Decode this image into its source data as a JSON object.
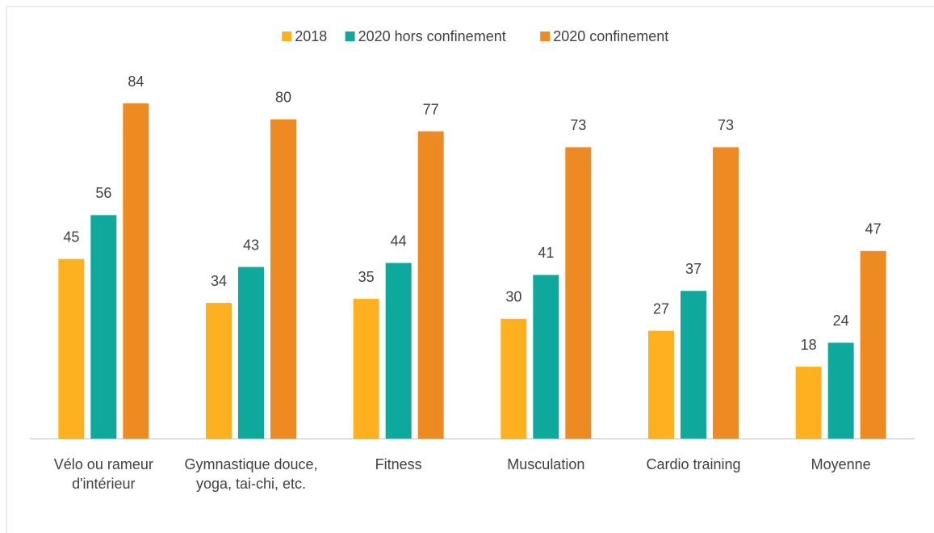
{
  "chart_data": {
    "type": "bar",
    "categories": [
      "Vélo ou rameur d'intérieur",
      "Gymnastique douce, yoga, tai-chi, etc.",
      "Fitness",
      "Musculation",
      "Cardio training",
      "Moyenne"
    ],
    "series": [
      {
        "name": "2018",
        "color": "#fdb11e",
        "values": [
          45,
          34,
          35,
          30,
          27,
          18
        ]
      },
      {
        "name": "2020 hors confinement",
        "color": "#0fa89d",
        "values": [
          56,
          43,
          44,
          41,
          37,
          24
        ]
      },
      {
        "name": "2020 confinement",
        "color": "#ee8a22",
        "values": [
          84,
          80,
          77,
          73,
          73,
          47
        ]
      }
    ],
    "legend": "top"
  }
}
